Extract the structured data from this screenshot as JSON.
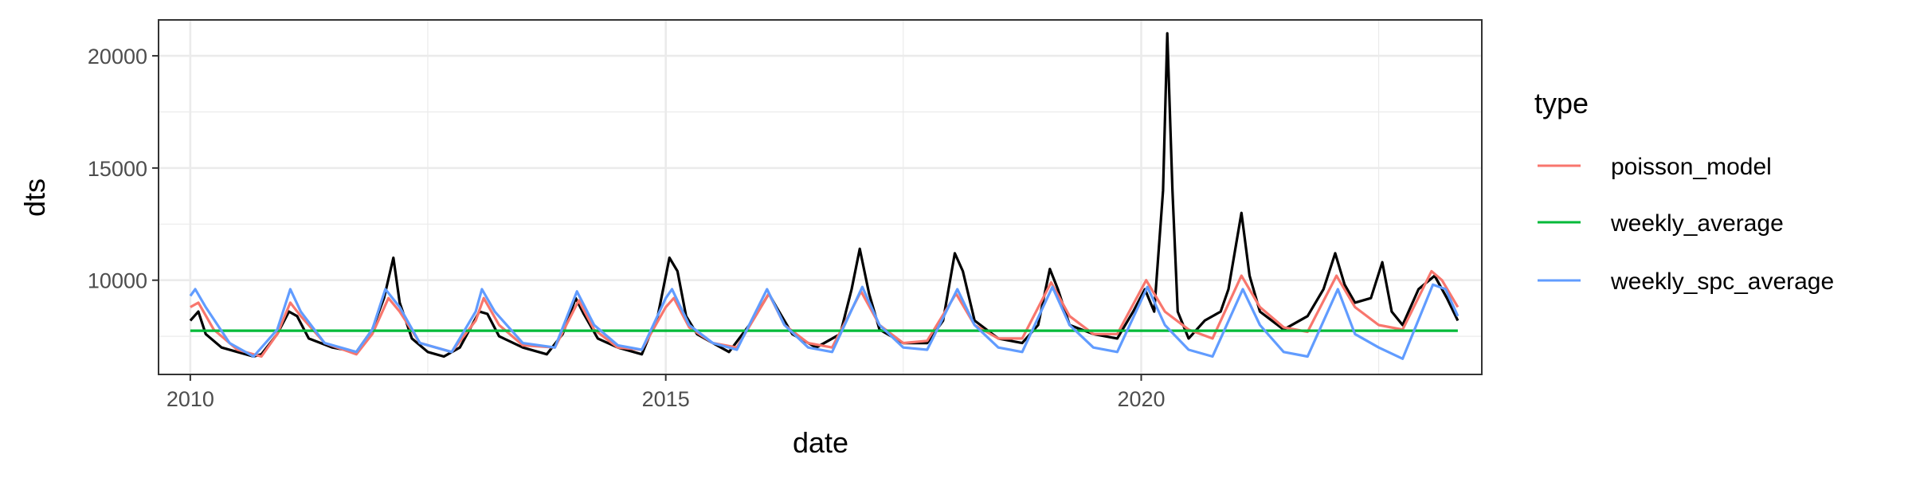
{
  "chart_data": {
    "type": "line",
    "title": "",
    "xlabel": "date",
    "ylabel": "dts",
    "xlim": [
      "2009-09-01",
      "2023-08-01"
    ],
    "ylim": [
      5800,
      21600
    ],
    "x_ticks": [
      {
        "date": "2010-01-01",
        "label": "2010"
      },
      {
        "date": "2015-01-01",
        "label": "2015"
      },
      {
        "date": "2020-01-01",
        "label": "2020"
      }
    ],
    "x_minor_ticks": [
      "2012-07-01",
      "2017-07-01",
      "2022-07-01"
    ],
    "y_ticks": [
      10000,
      15000,
      20000
    ],
    "y_minor_ticks": [
      7500,
      12500,
      17500
    ],
    "grid": true,
    "legend": {
      "title": "type",
      "placement": "right",
      "entries": [
        {
          "label": "poisson_model",
          "color": "#F8766D"
        },
        {
          "label": "weekly_average",
          "color": "#00BA38"
        },
        {
          "label": "weekly_spc_average",
          "color": "#619CFF"
        }
      ]
    },
    "series": [
      {
        "name": "",
        "color": "#000000",
        "points": [
          [
            "2010-01-01",
            8200
          ],
          [
            "2010-02-01",
            8600
          ],
          [
            "2010-03-01",
            7600
          ],
          [
            "2010-05-01",
            7000
          ],
          [
            "2010-07-01",
            6800
          ],
          [
            "2010-09-01",
            6600
          ],
          [
            "2010-10-01",
            6700
          ],
          [
            "2010-12-01",
            7600
          ],
          [
            "2011-01-15",
            8600
          ],
          [
            "2011-02-15",
            8400
          ],
          [
            "2011-04-01",
            7400
          ],
          [
            "2011-07-01",
            7000
          ],
          [
            "2011-10-01",
            6800
          ],
          [
            "2011-12-01",
            7800
          ],
          [
            "2012-01-15",
            9200
          ],
          [
            "2012-02-20",
            11000
          ],
          [
            "2012-03-15",
            9000
          ],
          [
            "2012-05-01",
            7400
          ],
          [
            "2012-07-01",
            6800
          ],
          [
            "2012-09-01",
            6600
          ],
          [
            "2012-11-01",
            7000
          ],
          [
            "2013-01-15",
            8600
          ],
          [
            "2013-02-15",
            8500
          ],
          [
            "2013-04-01",
            7500
          ],
          [
            "2013-07-01",
            7000
          ],
          [
            "2013-10-01",
            6700
          ],
          [
            "2013-12-01",
            7600
          ],
          [
            "2014-01-20",
            9200
          ],
          [
            "2014-02-20",
            8500
          ],
          [
            "2014-04-15",
            7400
          ],
          [
            "2014-07-01",
            7000
          ],
          [
            "2014-10-01",
            6700
          ],
          [
            "2014-12-01",
            8400
          ],
          [
            "2015-01-15",
            11000
          ],
          [
            "2015-02-15",
            10400
          ],
          [
            "2015-03-20",
            8400
          ],
          [
            "2015-05-01",
            7600
          ],
          [
            "2015-07-01",
            7200
          ],
          [
            "2015-09-01",
            6800
          ],
          [
            "2015-12-01",
            8200
          ],
          [
            "2016-02-01",
            9400
          ],
          [
            "2016-03-01",
            8800
          ],
          [
            "2016-05-01",
            7600
          ],
          [
            "2016-08-01",
            7000
          ],
          [
            "2016-11-01",
            7600
          ],
          [
            "2016-12-15",
            9600
          ],
          [
            "2017-01-15",
            11400
          ],
          [
            "2017-02-20",
            9400
          ],
          [
            "2017-04-01",
            7800
          ],
          [
            "2017-07-01",
            7200
          ],
          [
            "2017-10-01",
            7200
          ],
          [
            "2017-12-01",
            8200
          ],
          [
            "2018-01-15",
            11200
          ],
          [
            "2018-02-15",
            10400
          ],
          [
            "2018-04-01",
            8200
          ],
          [
            "2018-07-01",
            7400
          ],
          [
            "2018-10-01",
            7200
          ],
          [
            "2018-12-01",
            8000
          ],
          [
            "2019-01-15",
            10500
          ],
          [
            "2019-02-15",
            9600
          ],
          [
            "2019-04-01",
            8000
          ],
          [
            "2019-07-01",
            7600
          ],
          [
            "2019-10-01",
            7400
          ],
          [
            "2019-12-01",
            8600
          ],
          [
            "2020-01-15",
            9600
          ],
          [
            "2020-02-20",
            8600
          ],
          [
            "2020-03-25",
            14000
          ],
          [
            "2020-04-10",
            21000
          ],
          [
            "2020-04-30",
            14000
          ],
          [
            "2020-05-20",
            8600
          ],
          [
            "2020-07-01",
            7400
          ],
          [
            "2020-09-01",
            8200
          ],
          [
            "2020-11-01",
            8600
          ],
          [
            "2020-12-01",
            9600
          ],
          [
            "2021-01-20",
            13000
          ],
          [
            "2021-02-20",
            10200
          ],
          [
            "2021-04-01",
            8600
          ],
          [
            "2021-07-01",
            7800
          ],
          [
            "2021-10-01",
            8400
          ],
          [
            "2021-12-01",
            9600
          ],
          [
            "2022-01-15",
            11200
          ],
          [
            "2022-02-20",
            9800
          ],
          [
            "2022-04-01",
            9000
          ],
          [
            "2022-06-01",
            9200
          ],
          [
            "2022-07-15",
            10800
          ],
          [
            "2022-08-20",
            8600
          ],
          [
            "2022-10-01",
            8000
          ],
          [
            "2022-12-01",
            9600
          ],
          [
            "2023-02-01",
            10200
          ],
          [
            "2023-03-20",
            9200
          ],
          [
            "2023-05-01",
            8200
          ]
        ]
      },
      {
        "name": "poisson_model",
        "color": "#F8766D",
        "points": [
          [
            "2010-01-01",
            8800
          ],
          [
            "2010-02-01",
            9000
          ],
          [
            "2010-04-01",
            7800
          ],
          [
            "2010-07-01",
            6900
          ],
          [
            "2010-10-01",
            6600
          ],
          [
            "2010-12-01",
            7600
          ],
          [
            "2011-01-20",
            9000
          ],
          [
            "2011-03-01",
            8400
          ],
          [
            "2011-06-01",
            7200
          ],
          [
            "2011-10-01",
            6700
          ],
          [
            "2011-12-01",
            7600
          ],
          [
            "2012-02-01",
            9200
          ],
          [
            "2012-03-15",
            8600
          ],
          [
            "2012-06-01",
            7200
          ],
          [
            "2012-10-01",
            6800
          ],
          [
            "2013-01-01",
            8200
          ],
          [
            "2013-02-01",
            9200
          ],
          [
            "2013-04-01",
            8000
          ],
          [
            "2013-07-01",
            7100
          ],
          [
            "2013-11-01",
            7000
          ],
          [
            "2014-02-01",
            9100
          ],
          [
            "2014-04-01",
            7800
          ],
          [
            "2014-07-01",
            7000
          ],
          [
            "2014-10-01",
            6900
          ],
          [
            "2015-01-01",
            8800
          ],
          [
            "2015-02-01",
            9200
          ],
          [
            "2015-04-01",
            7900
          ],
          [
            "2015-07-01",
            7200
          ],
          [
            "2015-10-01",
            7000
          ],
          [
            "2016-02-01",
            9400
          ],
          [
            "2016-04-01",
            8000
          ],
          [
            "2016-07-01",
            7200
          ],
          [
            "2016-10-01",
            7000
          ],
          [
            "2017-01-20",
            9500
          ],
          [
            "2017-04-01",
            8000
          ],
          [
            "2017-07-01",
            7200
          ],
          [
            "2017-10-01",
            7300
          ],
          [
            "2018-01-20",
            9400
          ],
          [
            "2018-04-01",
            8000
          ],
          [
            "2018-07-01",
            7400
          ],
          [
            "2018-10-01",
            7400
          ],
          [
            "2019-01-20",
            9900
          ],
          [
            "2019-04-01",
            8400
          ],
          [
            "2019-07-01",
            7600
          ],
          [
            "2019-10-01",
            7600
          ],
          [
            "2020-01-20",
            10000
          ],
          [
            "2020-04-01",
            8600
          ],
          [
            "2020-07-01",
            7800
          ],
          [
            "2020-10-01",
            7400
          ],
          [
            "2021-01-20",
            10200
          ],
          [
            "2021-04-01",
            8800
          ],
          [
            "2021-07-01",
            7900
          ],
          [
            "2021-10-01",
            7700
          ],
          [
            "2022-01-20",
            10200
          ],
          [
            "2022-04-01",
            8800
          ],
          [
            "2022-07-01",
            8000
          ],
          [
            "2022-10-01",
            7800
          ],
          [
            "2023-01-20",
            10400
          ],
          [
            "2023-03-01",
            10000
          ],
          [
            "2023-05-01",
            8800
          ]
        ]
      },
      {
        "name": "weekly_average",
        "color": "#00BA38",
        "points": [
          [
            "2010-01-01",
            7750
          ],
          [
            "2023-05-01",
            7750
          ]
        ]
      },
      {
        "name": "weekly_spc_average",
        "color": "#619CFF",
        "points": [
          [
            "2010-01-01",
            9300
          ],
          [
            "2010-01-20",
            9600
          ],
          [
            "2010-03-01",
            8800
          ],
          [
            "2010-06-01",
            7200
          ],
          [
            "2010-09-01",
            6600
          ],
          [
            "2010-12-01",
            7800
          ],
          [
            "2011-01-20",
            9600
          ],
          [
            "2011-03-01",
            8600
          ],
          [
            "2011-06-01",
            7200
          ],
          [
            "2011-10-01",
            6800
          ],
          [
            "2011-12-01",
            7800
          ],
          [
            "2012-01-20",
            9600
          ],
          [
            "2012-03-15",
            8800
          ],
          [
            "2012-06-01",
            7200
          ],
          [
            "2012-10-01",
            6800
          ],
          [
            "2013-01-01",
            8600
          ],
          [
            "2013-01-25",
            9600
          ],
          [
            "2013-03-15",
            8600
          ],
          [
            "2013-07-01",
            7200
          ],
          [
            "2013-11-01",
            7000
          ],
          [
            "2014-01-25",
            9500
          ],
          [
            "2014-04-01",
            8000
          ],
          [
            "2014-07-01",
            7100
          ],
          [
            "2014-10-01",
            6900
          ],
          [
            "2015-01-01",
            9200
          ],
          [
            "2015-01-25",
            9600
          ],
          [
            "2015-04-01",
            8000
          ],
          [
            "2015-07-01",
            7200
          ],
          [
            "2015-10-01",
            6900
          ],
          [
            "2016-01-25",
            9600
          ],
          [
            "2016-04-01",
            8000
          ],
          [
            "2016-07-01",
            7000
          ],
          [
            "2016-10-01",
            6800
          ],
          [
            "2017-01-25",
            9700
          ],
          [
            "2017-04-01",
            8000
          ],
          [
            "2017-07-01",
            7000
          ],
          [
            "2017-10-01",
            6900
          ],
          [
            "2018-01-25",
            9600
          ],
          [
            "2018-04-01",
            8000
          ],
          [
            "2018-07-01",
            7000
          ],
          [
            "2018-10-01",
            6800
          ],
          [
            "2019-01-25",
            9700
          ],
          [
            "2019-04-01",
            8000
          ],
          [
            "2019-07-01",
            7000
          ],
          [
            "2019-10-01",
            6800
          ],
          [
            "2020-01-25",
            9700
          ],
          [
            "2020-04-01",
            8000
          ],
          [
            "2020-07-01",
            6900
          ],
          [
            "2020-10-01",
            6600
          ],
          [
            "2021-01-25",
            9600
          ],
          [
            "2021-04-01",
            8000
          ],
          [
            "2021-07-01",
            6800
          ],
          [
            "2021-10-01",
            6600
          ],
          [
            "2022-01-25",
            9600
          ],
          [
            "2022-04-01",
            7600
          ],
          [
            "2022-07-01",
            7000
          ],
          [
            "2022-10-01",
            6500
          ],
          [
            "2023-01-25",
            9800
          ],
          [
            "2023-03-15",
            9600
          ],
          [
            "2023-05-01",
            8400
          ]
        ]
      }
    ]
  }
}
